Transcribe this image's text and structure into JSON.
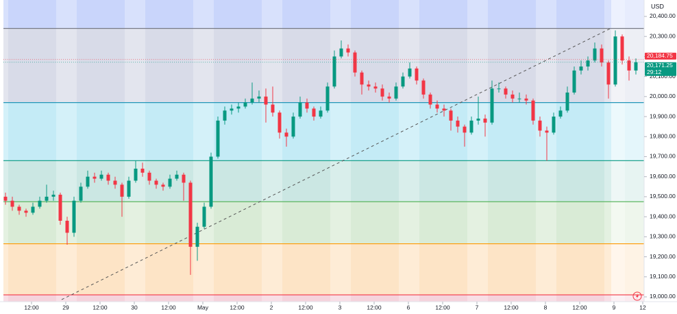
{
  "chart_data": {
    "type": "candlestick",
    "currency": "USD",
    "xlim": [
      0.09,
      9.44
    ],
    "ylim": [
      18976,
      20482
    ],
    "grid": false,
    "up_color": "#089981",
    "down_color": "#f23645",
    "xticks": [
      {
        "value": 0.5,
        "label": "12:00"
      },
      {
        "value": 1,
        "label": "29"
      },
      {
        "value": 1.5,
        "label": "12:00"
      },
      {
        "value": 2,
        "label": "30"
      },
      {
        "value": 2.5,
        "label": "12:00"
      },
      {
        "value": 3,
        "label": "May"
      },
      {
        "value": 3.5,
        "label": "12:00"
      },
      {
        "value": 4,
        "label": "2"
      },
      {
        "value": 4.5,
        "label": "12:00"
      },
      {
        "value": 5,
        "label": "3"
      },
      {
        "value": 5.5,
        "label": "12:00"
      },
      {
        "value": 6,
        "label": "6"
      },
      {
        "value": 6.5,
        "label": "12:00"
      },
      {
        "value": 7,
        "label": "7"
      },
      {
        "value": 7.5,
        "label": "12:00"
      },
      {
        "value": 8,
        "label": "8"
      },
      {
        "value": 8.5,
        "label": "12:00"
      },
      {
        "value": 9,
        "label": "9"
      },
      {
        "value": 9.42,
        "label": "12"
      }
    ],
    "yticks": [
      {
        "value": 19000,
        "label": "19,000.00"
      },
      {
        "value": 19100,
        "label": "19,100.00"
      },
      {
        "value": 19200,
        "label": "19,200.00"
      },
      {
        "value": 19300,
        "label": "19,300.00"
      },
      {
        "value": 19400,
        "label": "19,400.00"
      },
      {
        "value": 19500,
        "label": "19,500.00"
      },
      {
        "value": 19600,
        "label": "19,600.00"
      },
      {
        "value": 19700,
        "label": "19,700.00"
      },
      {
        "value": 19800,
        "label": "19,800.00"
      },
      {
        "value": 19900,
        "label": "19,900.00"
      },
      {
        "value": 20000,
        "label": "20,000.00"
      },
      {
        "value": 20100,
        "label": "20,100.00"
      },
      {
        "value": 20200,
        "label": "20,200.00"
      },
      {
        "value": 20300,
        "label": "20,300.00"
      },
      {
        "value": 20400,
        "label": "20,400.00"
      }
    ],
    "levels": [
      {
        "value": 20340,
        "color": "#787b86",
        "fill": "#c9d5fb"
      },
      {
        "value": 19970,
        "color": "#2196b8",
        "fill": "#d8dbe8"
      },
      {
        "value": 19680,
        "color": "#089981",
        "fill": "#c4ebf6"
      },
      {
        "value": 19475,
        "color": "#4caf50",
        "fill": "#cbe7e3"
      },
      {
        "value": 19265,
        "color": "#ff9800",
        "fill": "#d9ebd6"
      },
      {
        "value": 19010,
        "color": "#f23645",
        "fill": "#fde4c6"
      }
    ],
    "bottom_fill": "#f5d3dc",
    "price_markers": [
      {
        "value": 20184.75,
        "label": "20,184.75",
        "color": "#f23645"
      },
      {
        "value": 20171.25,
        "label": "20,171.25",
        "color": "#089981",
        "timer": "29:12"
      }
    ],
    "x": [
      0.12,
      0.22,
      0.32,
      0.42,
      0.52,
      0.62,
      0.72,
      0.82,
      0.92,
      1.02,
      1.12,
      1.22,
      1.32,
      1.42,
      1.52,
      1.62,
      1.72,
      1.82,
      1.92,
      2.02,
      2.12,
      2.22,
      2.32,
      2.42,
      2.52,
      2.62,
      2.72,
      2.82,
      2.92,
      3.02,
      3.12,
      3.22,
      3.32,
      3.42,
      3.52,
      3.62,
      3.72,
      3.82,
      3.92,
      4.02,
      4.12,
      4.22,
      4.32,
      4.42,
      4.52,
      4.62,
      4.72,
      4.82,
      4.92,
      5.02,
      5.12,
      5.22,
      5.32,
      5.42,
      5.52,
      5.62,
      5.72,
      5.82,
      5.92,
      6.02,
      6.12,
      6.22,
      6.32,
      6.42,
      6.52,
      6.62,
      6.72,
      6.82,
      6.92,
      7.02,
      7.12,
      7.22,
      7.32,
      7.42,
      7.52,
      7.62,
      7.72,
      7.82,
      7.92,
      8.02,
      8.12,
      8.22,
      8.32,
      8.42,
      8.52,
      8.62,
      8.72,
      8.82,
      8.92,
      9.02,
      9.12,
      9.22,
      9.32
    ],
    "open": [
      19500,
      19480,
      19450,
      19430,
      19420,
      19450,
      19480,
      19500,
      19510,
      19380,
      19320,
      19480,
      19550,
      19600,
      19590,
      19610,
      19580,
      19560,
      19500,
      19580,
      19640,
      19620,
      19580,
      19560,
      19550,
      19590,
      19610,
      19570,
      19250,
      19350,
      19450,
      19700,
      19880,
      19930,
      19940,
      19950,
      19970,
      19990,
      20000,
      19960,
      19920,
      19820,
      19800,
      19900,
      19970,
      19940,
      19900,
      19930,
      20050,
      20200,
      20240,
      20220,
      20120,
      20060,
      20050,
      20040,
      20000,
      19990,
      20050,
      20100,
      20140,
      20080,
      20010,
      19960,
      19940,
      19930,
      19880,
      19850,
      19820,
      19880,
      19890,
      19870,
      20040,
      20040,
      20010,
      19990,
      19990,
      19980,
      19880,
      19830,
      19820,
      19900,
      19930,
      20020,
      20130,
      20150,
      20180,
      20240,
      20170,
      20060,
      20300,
      20180,
      20130
    ],
    "high": [
      19520,
      19500,
      19460,
      19440,
      19470,
      19500,
      19560,
      19530,
      19520,
      19400,
      19500,
      19570,
      19630,
      19620,
      19630,
      19620,
      19600,
      19570,
      19600,
      19680,
      19670,
      19630,
      19590,
      19570,
      19610,
      19630,
      19620,
      19580,
      19370,
      19470,
      19720,
      19900,
      19950,
      19960,
      19970,
      19990,
      20070,
      20030,
      20040,
      20050,
      19930,
      19840,
      19920,
      20000,
      19990,
      19950,
      19950,
      20070,
      20230,
      20280,
      20260,
      20230,
      20130,
      20080,
      20070,
      20060,
      20020,
      20070,
      20120,
      20170,
      20150,
      20090,
      20020,
      19980,
      19960,
      19940,
      19900,
      19860,
      19900,
      20000,
      19910,
      20080,
      20070,
      20050,
      20030,
      20020,
      20010,
      19990,
      19900,
      19850,
      19920,
      19950,
      20050,
      20150,
      20180,
      20200,
      20270,
      20260,
      20180,
      20330,
      20310,
      20200,
      20190
    ],
    "low": [
      19460,
      19430,
      19410,
      19400,
      19410,
      19440,
      19470,
      19480,
      19360,
      19260,
      19300,
      19470,
      19540,
      19570,
      19580,
      19560,
      19540,
      19400,
      19490,
      19570,
      19600,
      19560,
      19540,
      19530,
      19540,
      19580,
      19480,
      19110,
      19180,
      19340,
      19440,
      19690,
      19860,
      19910,
      19920,
      19940,
      19960,
      19970,
      19870,
      19900,
      19790,
      19750,
      19790,
      19890,
      19920,
      19880,
      19890,
      19920,
      20040,
      20190,
      20200,
      20100,
      20010,
      20030,
      20020,
      19980,
      19970,
      19980,
      20040,
      20090,
      20060,
      19990,
      19940,
      19920,
      19900,
      19830,
      19820,
      19750,
      19810,
      19860,
      19800,
      19860,
      20020,
      19990,
      19970,
      19970,
      19960,
      19860,
      19800,
      19680,
      19810,
      19890,
      19920,
      20010,
      20110,
      20130,
      20170,
      20150,
      19990,
      20050,
      20160,
      20080,
      20110
    ],
    "close": [
      19480,
      19450,
      19430,
      19420,
      19450,
      19480,
      19500,
      19510,
      19380,
      19320,
      19480,
      19550,
      19600,
      19590,
      19610,
      19580,
      19560,
      19500,
      19580,
      19640,
      19620,
      19580,
      19560,
      19550,
      19590,
      19610,
      19570,
      19250,
      19350,
      19450,
      19700,
      19880,
      19930,
      19940,
      19950,
      19970,
      19990,
      20000,
      19960,
      19920,
      19820,
      19800,
      19900,
      19970,
      19940,
      19900,
      19930,
      20050,
      20200,
      20240,
      20220,
      20120,
      20060,
      20050,
      20040,
      20000,
      19990,
      20050,
      20100,
      20140,
      20080,
      20010,
      19960,
      19940,
      19930,
      19880,
      19850,
      19820,
      19880,
      19890,
      19870,
      20040,
      20040,
      20010,
      19990,
      19990,
      19980,
      19880,
      19830,
      19820,
      19900,
      19930,
      20020,
      20130,
      20150,
      20180,
      20240,
      20170,
      20060,
      20300,
      20180,
      20130,
      20171.25
    ]
  }
}
